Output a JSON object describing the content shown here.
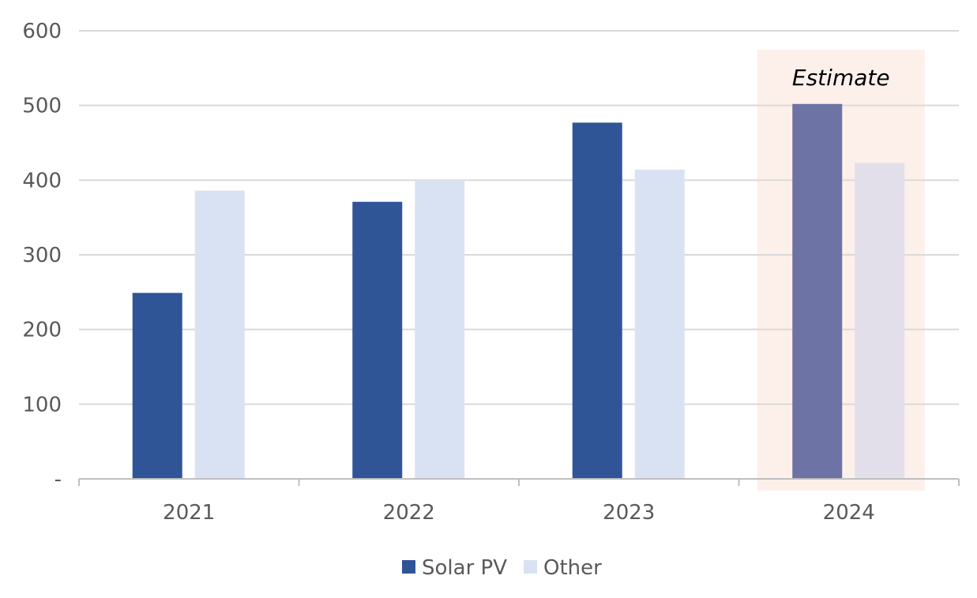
{
  "chart_data": {
    "type": "bar",
    "categories": [
      "2021",
      "2022",
      "2023",
      "2024"
    ],
    "series": [
      {
        "name": "Solar PV",
        "values": [
          249,
          371,
          477,
          502
        ],
        "color": "#2F5597",
        "estimate_color": "#6E73A6"
      },
      {
        "name": "Other",
        "values": [
          386,
          400,
          414,
          423
        ],
        "color": "#D9E2F3",
        "estimate_color": "#E2DFEA"
      }
    ],
    "ylim": [
      0,
      600
    ],
    "yticks": [
      0,
      100,
      200,
      300,
      400,
      500,
      600
    ],
    "ytick_labels": [
      "-",
      "100",
      "200",
      "300",
      "400",
      "500",
      "600"
    ],
    "grid": true,
    "legend": "bottom-center",
    "annotation": {
      "category": "2024",
      "text": "Estimate",
      "highlight_color": "#FDF0EA"
    },
    "colors": {
      "grid": "#D9D9D9",
      "axis": "#BFBFBF",
      "text": "#595959"
    }
  }
}
